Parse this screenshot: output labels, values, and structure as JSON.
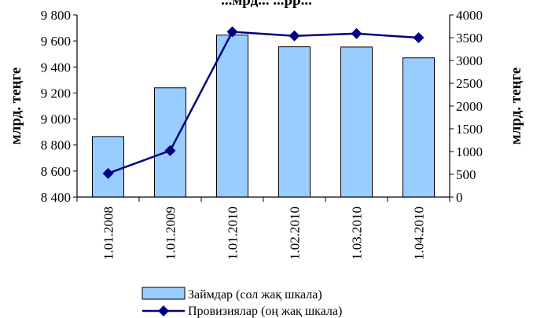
{
  "chart_data": {
    "type": "bar",
    "title": "...мрд... ...рр...",
    "categories": [
      "1.01.2008",
      "1.01.2009",
      "1.01.2010",
      "1.02.2010",
      "1.03.2010",
      "1.04.2010"
    ],
    "series": [
      {
        "name": "Займдар (сол жақ шкала)",
        "type": "bar",
        "axis": "left",
        "color": "#99ccff",
        "values": [
          8865,
          9240,
          9645,
          9555,
          9553,
          9470
        ]
      },
      {
        "name": "Провизиялар (оң жақ шкала)",
        "type": "line",
        "axis": "right",
        "color": "#000080",
        "values": [
          520,
          1020,
          3630,
          3540,
          3590,
          3500
        ]
      }
    ],
    "y_left": {
      "label": "млрд. теңге",
      "range": [
        8400,
        9800
      ],
      "ticks": [
        8400,
        8600,
        8800,
        9000,
        9200,
        9400,
        9600,
        9800
      ],
      "tick_labels": [
        "8 400",
        "8 600",
        "8 800",
        "9 000",
        "9 200",
        "9 400",
        "9 600",
        "9 800"
      ]
    },
    "y_right": {
      "label": "млрд. теңге",
      "range": [
        0,
        4000
      ],
      "ticks": [
        0,
        500,
        1000,
        1500,
        2000,
        2500,
        3000,
        3500,
        4000
      ],
      "tick_labels": [
        "0",
        "500",
        "1000",
        "1500",
        "2000",
        "2500",
        "3000",
        "3500",
        "4000"
      ]
    },
    "grid": false,
    "legend_position": "bottom"
  }
}
